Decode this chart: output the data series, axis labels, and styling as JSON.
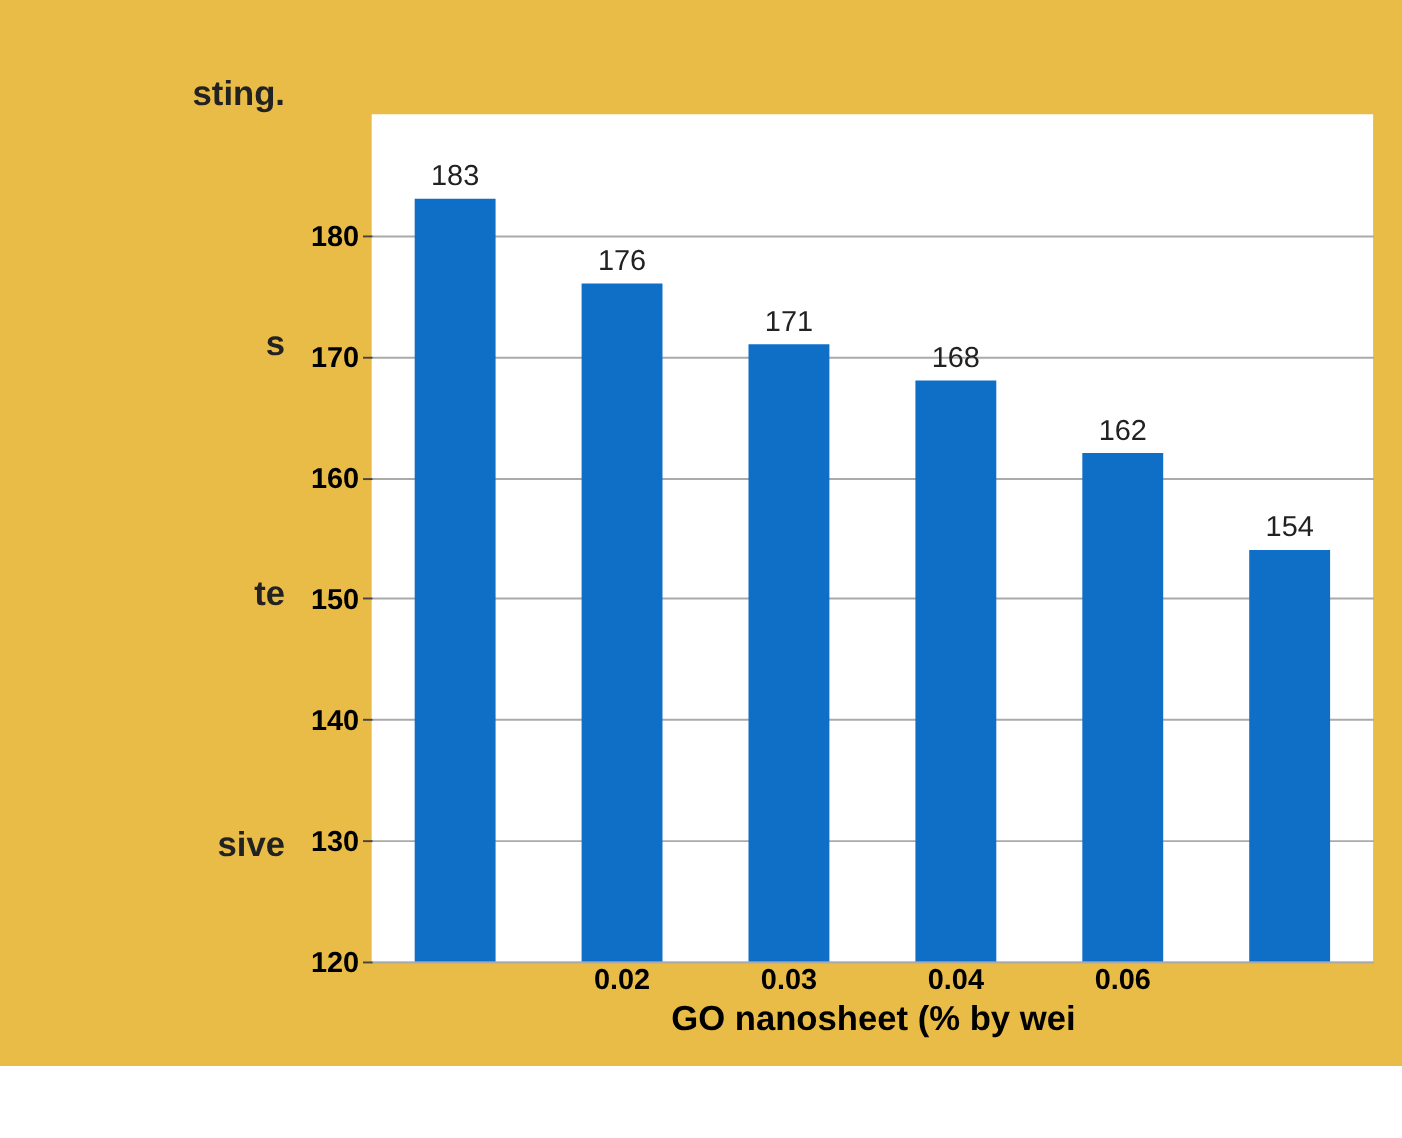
{
  "chart_data": {
    "type": "bar",
    "categories": [
      null,
      "0.02",
      "0.03",
      "0.04",
      "0.06",
      null
    ],
    "values": [
      183,
      176,
      171,
      168,
      162,
      154
    ],
    "color": "#0f6fc6",
    "data_labels": true,
    "xlabel": "GO nanosheet (% by wei",
    "ylim": [
      120,
      190
    ],
    "yticks": [
      120,
      130,
      140,
      150,
      160,
      170,
      180
    ],
    "grid": "y",
    "annotations": [
      "sting.",
      "s",
      "te",
      "sive"
    ]
  }
}
